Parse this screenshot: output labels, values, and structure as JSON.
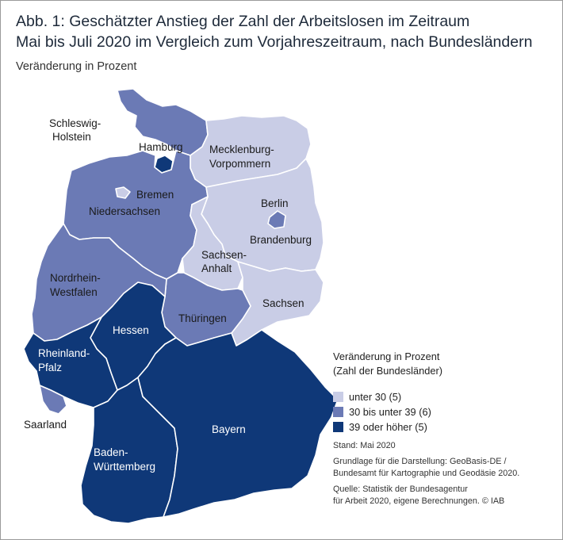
{
  "title": {
    "line1": "Abb. 1: Geschätzter Anstieg der Zahl der Arbeitslosen im Zeitraum",
    "line2": "Mai bis Juli 2020 im Vergleich zum Vorjahreszeitraum, nach Bundesländern"
  },
  "subtitle": "Veränderung in Prozent",
  "colors": {
    "low": "#c9cde6",
    "mid": "#6b7ab5",
    "high": "#0f3878",
    "border": "#ffffff"
  },
  "states": {
    "schleswig_holstein": {
      "name_l1": "Schleswig-",
      "name_l2": "Holstein",
      "class": "mid"
    },
    "hamburg": {
      "name": "Hamburg",
      "class": "high"
    },
    "mecklenburg": {
      "name_l1": "Mecklenburg-",
      "name_l2": "Vorpommern",
      "class": "low"
    },
    "bremen": {
      "name": "Bremen",
      "class": "low"
    },
    "niedersachsen": {
      "name": "Niedersachsen",
      "class": "mid"
    },
    "berlin": {
      "name": "Berlin",
      "class": "mid"
    },
    "brandenburg": {
      "name": "Brandenburg",
      "class": "low"
    },
    "sachsen_anhalt": {
      "name_l1": "Sachsen-",
      "name_l2": "Anhalt",
      "class": "low"
    },
    "nrw": {
      "name_l1": "Nordrhein-",
      "name_l2": "Westfalen",
      "class": "mid"
    },
    "sachsen": {
      "name": "Sachsen",
      "class": "low"
    },
    "thueringen": {
      "name": "Thüringen",
      "class": "mid"
    },
    "hessen": {
      "name": "Hessen",
      "class": "high"
    },
    "rheinland_pfalz": {
      "name_l1": "Rheinland-",
      "name_l2": "Pfalz",
      "class": "high"
    },
    "saarland": {
      "name": "Saarland",
      "class": "mid"
    },
    "bayern": {
      "name": "Bayern",
      "class": "high"
    },
    "baden_wuerttemberg": {
      "name_l1": "Baden-",
      "name_l2": "Württemberg",
      "class": "high"
    }
  },
  "legend": {
    "title_l1": "Veränderung in Prozent",
    "title_l2": "(Zahl der Bundesländer)",
    "items": [
      {
        "label": "unter 30 (5)",
        "class": "low"
      },
      {
        "label": "30 bis unter 39 (6)",
        "class": "mid"
      },
      {
        "label": "39 oder höher (5)",
        "class": "high"
      }
    ]
  },
  "notes": {
    "stand": "Stand: Mai 2020",
    "grundlage_l1": "Grundlage für die Darstellung: GeoBasis-DE /",
    "grundlage_l2": "Bundesamt für Kartographie und Geodäsie 2020.",
    "quelle_l1": "Quelle: Statistik der Bundesagentur",
    "quelle_l2": "für Arbeit 2020, eigene Berechnungen. © IAB"
  }
}
